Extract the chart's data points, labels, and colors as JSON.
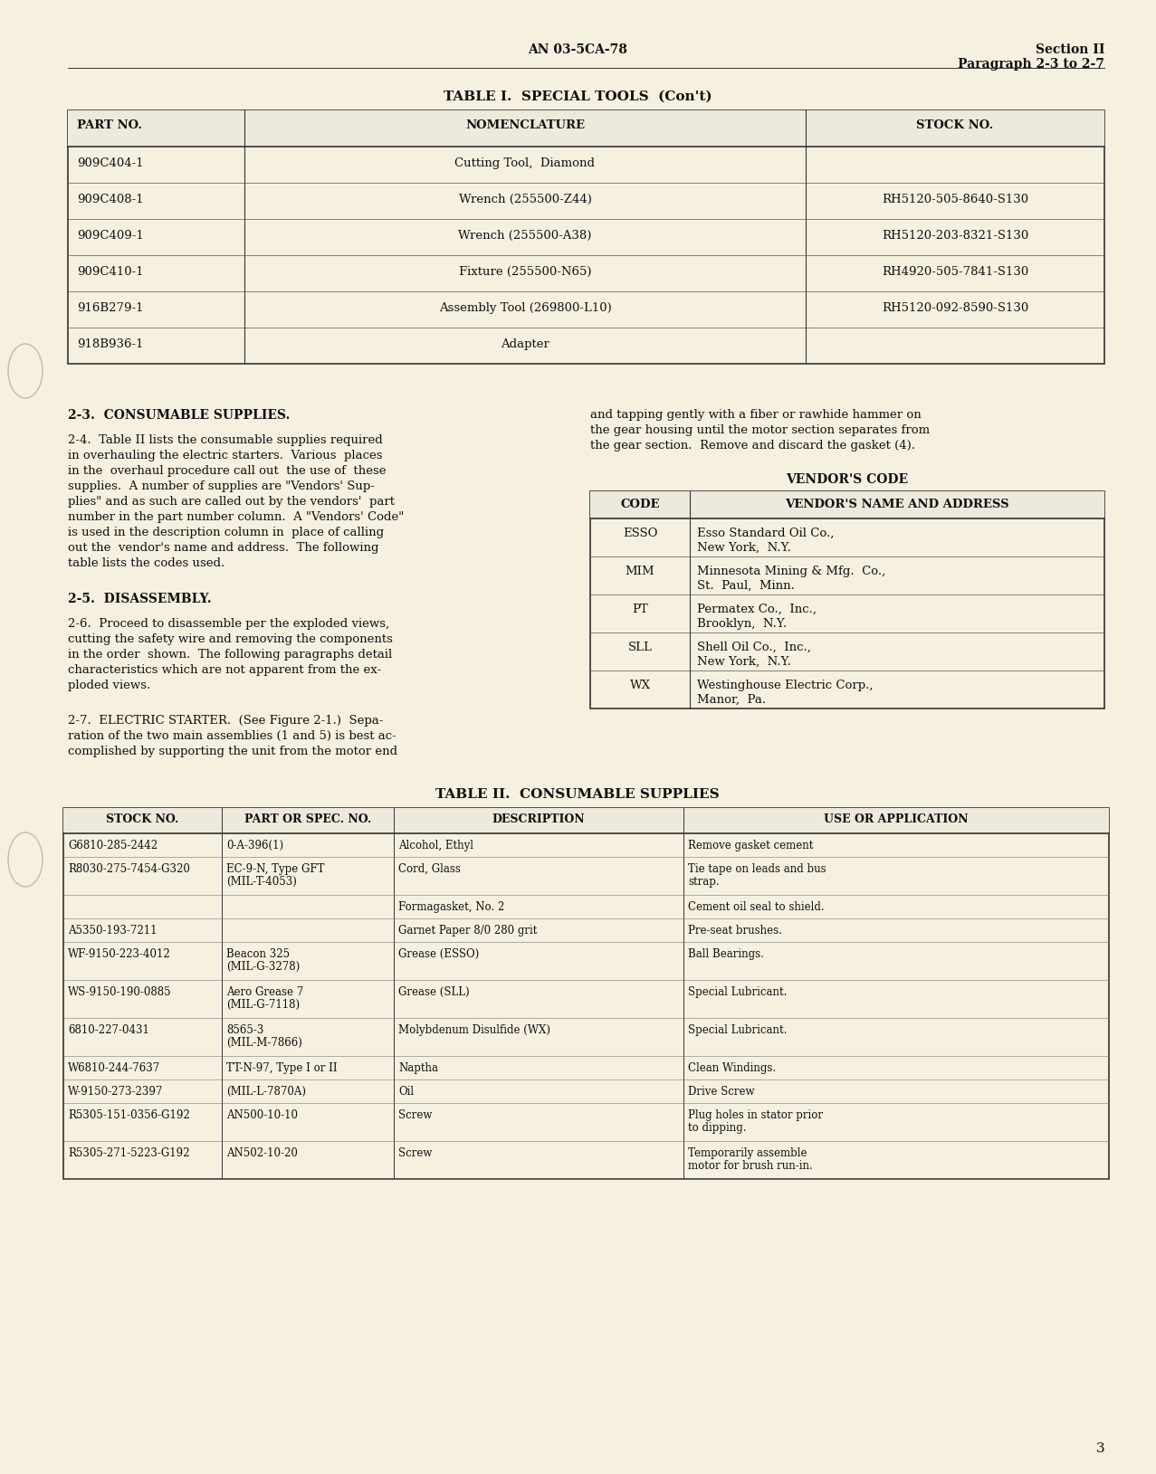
{
  "bg_color": "#f5f0e0",
  "page_color": "#f5f0e0",
  "header_center": "AN 03-5CA-78",
  "header_right_line1": "Section II",
  "header_right_line2": "Paragraph 2-3 to 2-7",
  "table1_title": "TABLE I.  SPECIAL TOOLS  (Con't)",
  "table1_headers": [
    "PART NO.",
    "NOMENCLATURE",
    "STOCK NO."
  ],
  "table1_rows": [
    [
      "909C404-1",
      "Cutting Tool,  Diamond",
      ""
    ],
    [
      "909C408-1",
      "Wrench (255500-Z44)",
      "RH5120-505-8640-S130"
    ],
    [
      "909C409-1",
      "Wrench (255500-A38)",
      "RH5120-203-8321-S130"
    ],
    [
      "909C410-1",
      "Fixture (255500-N65)",
      "RH4920-505-7841-S130"
    ],
    [
      "916B279-1",
      "Assembly Tool (269800-L10)",
      "RH5120-092-8590-S130"
    ],
    [
      "918B936-1",
      "Adapter",
      ""
    ]
  ],
  "vendor_title": "VENDOR'S CODE",
  "vendor_headers": [
    "CODE",
    "VENDOR'S NAME AND ADDRESS"
  ],
  "vendor_rows": [
    [
      "ESSO",
      "Esso Standard Oil Co.,\nNew York,  N.Y."
    ],
    [
      "MIM",
      "Minnesota Mining & Mfg.  Co.,\nSt.  Paul,  Minn."
    ],
    [
      "PT",
      "Permatex Co.,  Inc.,\nBrooklyn,  N.Y."
    ],
    [
      "SLL",
      "Shell Oil Co.,  Inc.,\nNew York,  N.Y."
    ],
    [
      "WX",
      "Westinghouse Electric Corp.,\nManor,  Pa."
    ]
  ],
  "table2_title": "TABLE II.  CONSUMABLE SUPPLIES",
  "table2_headers": [
    "STOCK NO.",
    "PART OR SPEC. NO.",
    "DESCRIPTION",
    "USE OR APPLICATION"
  ],
  "table2_rows": [
    [
      "G6810-285-2442",
      "0-A-396(1)",
      "Alcohol, Ethyl",
      "Remove gasket cement"
    ],
    [
      "R8030-275-7454-G320",
      "EC-9-N, Type GFT\n(MIL-T-4053)",
      "Cord, Glass",
      "Tie tape on leads and bus\nstrap."
    ],
    [
      "",
      "",
      "Formagasket, No. 2",
      "Cement oil seal to shield."
    ],
    [
      "A5350-193-7211",
      "",
      "Garnet Paper 8/0 280 grit",
      "Pre-seat brushes."
    ],
    [
      "WF-9150-223-4012",
      "Beacon 325\n(MIL-G-3278)",
      "Grease (ESSO)",
      "Ball Bearings."
    ],
    [
      "WS-9150-190-0885",
      "Aero Grease 7\n(MIL-G-7118)",
      "Grease (SLL)",
      "Special Lubricant."
    ],
    [
      "6810-227-0431",
      "8565-3\n(MIL-M-7866)",
      "Molybdenum Disulfide (WX)",
      "Special Lubricant."
    ],
    [
      "W6810-244-7637",
      "TT-N-97, Type I or II",
      "Naptha",
      "Clean Windings."
    ],
    [
      "W-9150-273-2397",
      "(MIL-L-7870A)",
      "Oil",
      "Drive Screw"
    ],
    [
      "R5305-151-0356-G192",
      "AN500-10-10",
      "Screw",
      "Plug holes in stator prior\nto dipping."
    ],
    [
      "R5305-271-5223-G192",
      "AN502-10-20",
      "Screw",
      "Temporarily assemble\nmotor for brush run-in."
    ]
  ],
  "page_number": "3"
}
